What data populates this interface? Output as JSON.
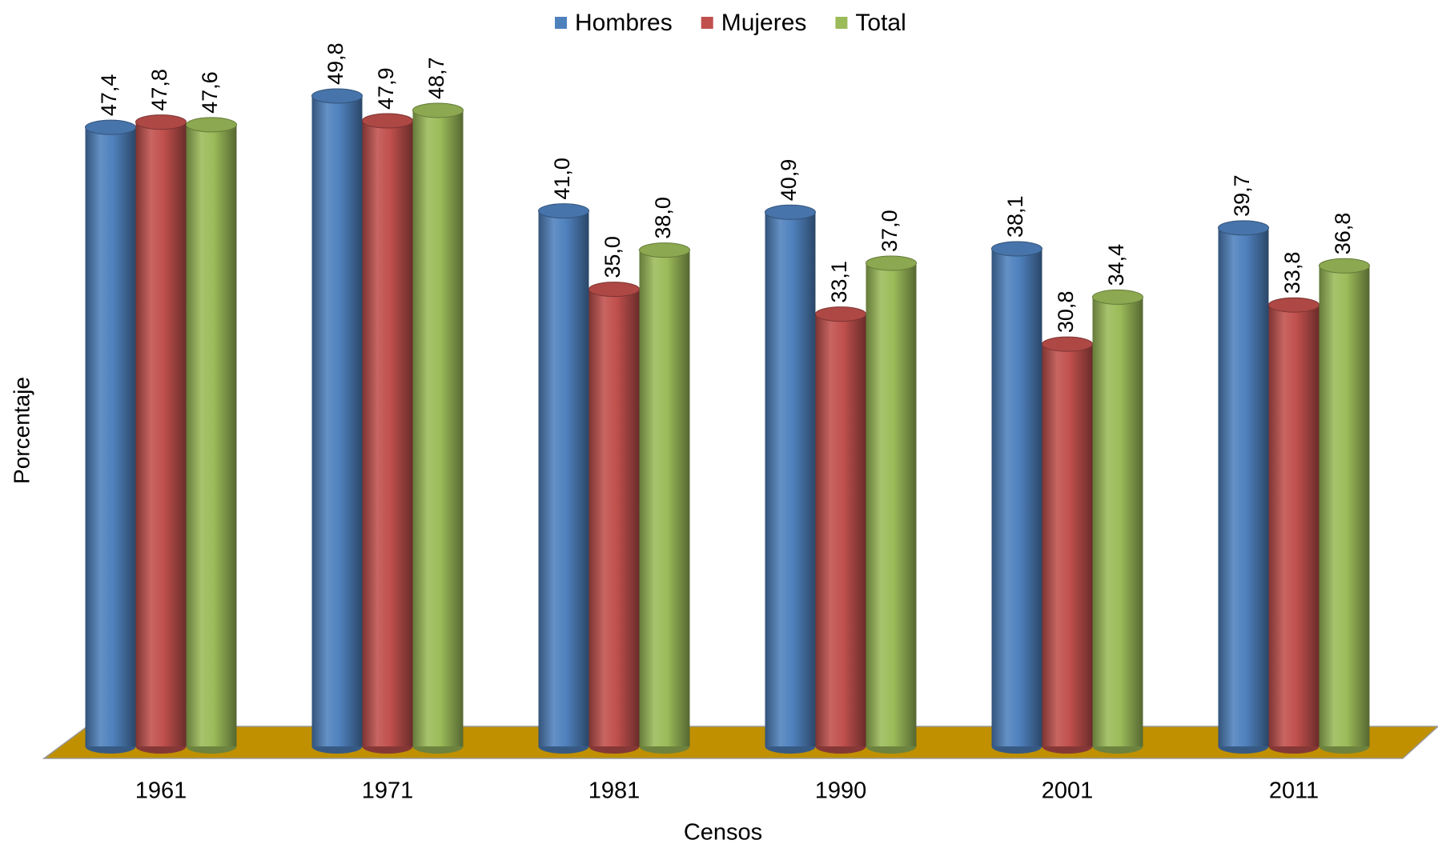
{
  "chart_data": {
    "type": "bar",
    "x_label": "Censos",
    "y_label": "Porcentaje",
    "categories": [
      "1961",
      "1971",
      "1981",
      "1990",
      "2001",
      "2011"
    ],
    "series": [
      {
        "name": "Hombres",
        "color": "#4f81bd",
        "values": [
          47.4,
          49.8,
          41.0,
          40.9,
          38.1,
          39.7
        ],
        "value_labels": [
          "47,4",
          "49,8",
          "41,0",
          "40,9",
          "38,1",
          "39,7"
        ]
      },
      {
        "name": "Mujeres",
        "color": "#c0504d",
        "values": [
          47.8,
          47.9,
          35.0,
          33.1,
          30.8,
          33.8
        ],
        "value_labels": [
          "47,8",
          "47,9",
          "35,0",
          "33,1",
          "30,8",
          "33,8"
        ]
      },
      {
        "name": "Total",
        "color": "#9bbb59",
        "values": [
          47.6,
          48.7,
          38.0,
          37.0,
          34.4,
          36.8
        ],
        "value_labels": [
          "47,6",
          "48,7",
          "38,0",
          "37,0",
          "34,4",
          "36,8"
        ]
      }
    ],
    "floor_color": "#c09000",
    "legend": "top"
  }
}
